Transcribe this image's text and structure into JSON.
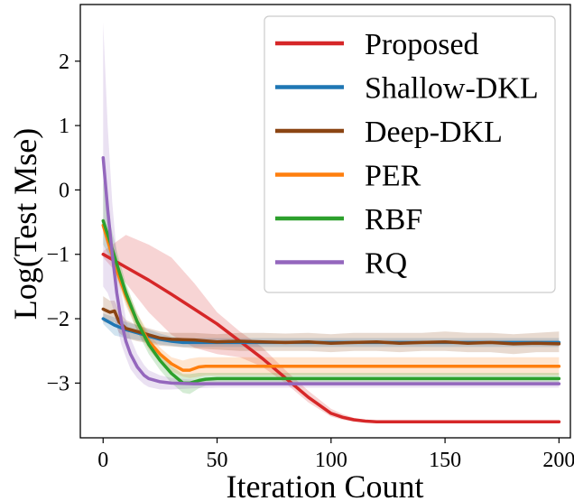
{
  "chart_data": {
    "type": "line",
    "title": "",
    "xlabel": "Iteration Count",
    "ylabel": "Log(Test Mse)",
    "xlim": [
      -10,
      205
    ],
    "ylim": [
      -3.85,
      2.88
    ],
    "xticks": [
      0,
      50,
      100,
      150,
      200
    ],
    "xtick_labels": [
      "0",
      "50",
      "100",
      "150",
      "200"
    ],
    "yticks": [
      2,
      1,
      0,
      -1,
      -2,
      -3
    ],
    "ytick_labels": [
      "2",
      "1",
      "0",
      "−1",
      "−2",
      "−3"
    ],
    "grid": false,
    "legend_position": "top-right",
    "series": [
      {
        "name": "Proposed",
        "color": "#d62728",
        "x": [
          0,
          10,
          20,
          30,
          40,
          50,
          60,
          70,
          80,
          90,
          100,
          105,
          110,
          115,
          120,
          130,
          150,
          175,
          200
        ],
        "y": [
          -1.0,
          -1.2,
          -1.4,
          -1.62,
          -1.85,
          -2.08,
          -2.35,
          -2.62,
          -2.92,
          -3.22,
          -3.47,
          -3.53,
          -3.57,
          -3.59,
          -3.6,
          -3.6,
          -3.6,
          -3.6,
          -3.6
        ],
        "band_upper": [
          -0.95,
          -0.7,
          -0.85,
          -1.05,
          -1.45,
          -1.9,
          -2.2,
          -2.45,
          -2.8,
          -3.12,
          -3.4,
          -3.48,
          -3.54,
          -3.57,
          -3.58,
          -3.59,
          -3.59,
          -3.59,
          -3.59
        ],
        "band_lower": [
          -1.05,
          -1.45,
          -1.9,
          -2.25,
          -2.45,
          -2.55,
          -2.6,
          -2.75,
          -3.0,
          -3.3,
          -3.52,
          -3.57,
          -3.6,
          -3.61,
          -3.61,
          -3.61,
          -3.61,
          -3.61,
          -3.61
        ]
      },
      {
        "name": "Shallow-DKL",
        "color": "#1f77b4",
        "x": [
          0,
          5,
          10,
          15,
          20,
          25,
          30,
          35,
          40,
          50,
          60,
          80,
          100,
          125,
          150,
          175,
          200
        ],
        "y": [
          -2.0,
          -2.1,
          -2.17,
          -2.22,
          -2.27,
          -2.32,
          -2.35,
          -2.37,
          -2.37,
          -2.37,
          -2.37,
          -2.37,
          -2.37,
          -2.37,
          -2.37,
          -2.37,
          -2.37
        ],
        "band_upper": [
          -1.92,
          -1.98,
          -2.05,
          -2.1,
          -2.17,
          -2.23,
          -2.28,
          -2.3,
          -2.3,
          -2.3,
          -2.3,
          -2.3,
          -2.3,
          -2.3,
          -2.3,
          -2.3,
          -2.3
        ],
        "band_lower": [
          -2.08,
          -2.26,
          -2.3,
          -2.33,
          -2.36,
          -2.4,
          -2.42,
          -2.44,
          -2.44,
          -2.44,
          -2.44,
          -2.44,
          -2.44,
          -2.44,
          -2.44,
          -2.44,
          -2.44
        ]
      },
      {
        "name": "Deep-DKL",
        "color": "#8b4513",
        "x": [
          0,
          3,
          5,
          7,
          10,
          15,
          20,
          25,
          30,
          40,
          50,
          60,
          70,
          80,
          90,
          100,
          110,
          120,
          130,
          140,
          150,
          160,
          170,
          180,
          190,
          200
        ],
        "y": [
          -1.85,
          -1.9,
          -1.88,
          -2.05,
          -2.15,
          -2.2,
          -2.25,
          -2.3,
          -2.32,
          -2.33,
          -2.36,
          -2.35,
          -2.36,
          -2.37,
          -2.36,
          -2.38,
          -2.37,
          -2.36,
          -2.38,
          -2.37,
          -2.36,
          -2.38,
          -2.37,
          -2.39,
          -2.38,
          -2.39
        ],
        "band_upper": [
          -1.65,
          -1.72,
          -1.72,
          -1.88,
          -2.02,
          -2.1,
          -2.15,
          -2.2,
          -2.22,
          -2.22,
          -2.24,
          -2.22,
          -2.22,
          -2.23,
          -2.22,
          -2.24,
          -2.22,
          -2.22,
          -2.22,
          -2.22,
          -2.2,
          -2.22,
          -2.22,
          -2.24,
          -2.22,
          -2.2
        ],
        "band_lower": [
          -2.05,
          -2.08,
          -2.05,
          -2.22,
          -2.3,
          -2.35,
          -2.38,
          -2.42,
          -2.43,
          -2.46,
          -2.48,
          -2.5,
          -2.5,
          -2.5,
          -2.5,
          -2.52,
          -2.5,
          -2.5,
          -2.52,
          -2.5,
          -2.5,
          -2.52,
          -2.52,
          -2.55,
          -2.52,
          -2.52
        ]
      },
      {
        "name": "PER",
        "color": "#ff7f0e",
        "x": [
          0,
          3,
          6,
          10,
          15,
          20,
          25,
          30,
          35,
          38,
          42,
          45,
          50,
          60,
          80,
          100,
          150,
          200
        ],
        "y": [
          -0.55,
          -0.9,
          -1.25,
          -1.65,
          -2.05,
          -2.35,
          -2.55,
          -2.7,
          -2.8,
          -2.8,
          -2.75,
          -2.74,
          -2.74,
          -2.74,
          -2.74,
          -2.74,
          -2.74,
          -2.74
        ],
        "band_upper": [
          -0.45,
          -0.78,
          -1.12,
          -1.5,
          -1.92,
          -2.22,
          -2.45,
          -2.6,
          -2.65,
          -2.62,
          -2.6,
          -2.6,
          -2.6,
          -2.6,
          -2.6,
          -2.6,
          -2.6,
          -2.6
        ],
        "band_lower": [
          -0.65,
          -1.02,
          -1.38,
          -1.8,
          -2.18,
          -2.48,
          -2.68,
          -2.82,
          -2.9,
          -2.92,
          -2.9,
          -2.88,
          -2.88,
          -2.88,
          -2.88,
          -2.88,
          -2.88,
          -2.88
        ]
      },
      {
        "name": "RBF",
        "color": "#2ca02c",
        "x": [
          0,
          3,
          6,
          10,
          15,
          20,
          25,
          30,
          35,
          38,
          42,
          45,
          50,
          60,
          80,
          100,
          150,
          200
        ],
        "y": [
          -0.48,
          -0.8,
          -1.15,
          -1.6,
          -2.05,
          -2.4,
          -2.65,
          -2.85,
          -3.0,
          -3.0,
          -2.96,
          -2.94,
          -2.93,
          -2.93,
          -2.93,
          -2.93,
          -2.93,
          -2.93
        ],
        "band_upper": [
          0.15,
          -0.5,
          -0.95,
          -1.45,
          -1.92,
          -2.28,
          -2.55,
          -2.74,
          -2.86,
          -2.86,
          -2.84,
          -2.84,
          -2.84,
          -2.84,
          -2.84,
          -2.84,
          -2.84,
          -2.84
        ],
        "band_lower": [
          -0.85,
          -1.05,
          -1.35,
          -1.75,
          -2.2,
          -2.55,
          -2.8,
          -3.0,
          -3.15,
          -3.17,
          -3.08,
          -3.04,
          -3.03,
          -3.03,
          -3.03,
          -3.03,
          -3.03,
          -3.03
        ]
      },
      {
        "name": "RQ",
        "color": "#9467bd",
        "x": [
          0,
          2,
          4,
          6,
          8,
          10,
          12,
          15,
          18,
          20,
          25,
          30,
          40,
          50,
          60,
          80,
          100,
          125,
          150,
          175,
          200
        ],
        "y": [
          0.5,
          -0.3,
          -1.0,
          -1.6,
          -2.05,
          -2.35,
          -2.55,
          -2.75,
          -2.88,
          -2.93,
          -2.98,
          -3.0,
          -3.01,
          -3.01,
          -3.01,
          -3.01,
          -3.01,
          -3.01,
          -3.01,
          -3.01,
          -3.01
        ],
        "band_upper": [
          2.6,
          1.0,
          -0.2,
          -1.0,
          -1.6,
          -2.0,
          -2.3,
          -2.55,
          -2.72,
          -2.8,
          -2.88,
          -2.92,
          -2.95,
          -2.96,
          -2.96,
          -2.96,
          -2.96,
          -2.96,
          -2.96,
          -2.96,
          -2.96
        ],
        "band_lower": [
          -1.5,
          -1.6,
          -1.8,
          -2.1,
          -2.4,
          -2.6,
          -2.78,
          -2.92,
          -3.02,
          -3.06,
          -3.1,
          -3.1,
          -3.08,
          -3.07,
          -3.07,
          -3.07,
          -3.07,
          -3.07,
          -3.07,
          -3.07,
          -3.07
        ]
      }
    ]
  }
}
